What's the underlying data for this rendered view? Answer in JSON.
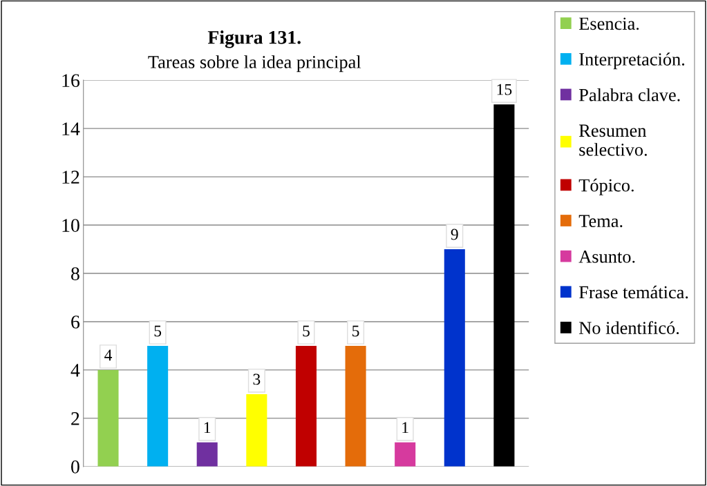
{
  "chart_data": {
    "type": "bar",
    "title": "Figura 131.",
    "subtitle": "Tareas sobre la idea principal",
    "categories": [
      null,
      null,
      null,
      null,
      null,
      null,
      null,
      null,
      null
    ],
    "series": [
      {
        "name": "Esencia.",
        "color": "#92d050",
        "values": [
          4,
          null,
          null,
          null,
          null,
          null,
          null,
          null,
          null
        ]
      },
      {
        "name": "Interpretación.",
        "color": "#00b0f0",
        "values": [
          null,
          5,
          null,
          null,
          null,
          null,
          null,
          null,
          null
        ]
      },
      {
        "name": "Palabra clave.",
        "color": "#7030a0",
        "values": [
          null,
          null,
          1,
          null,
          null,
          null,
          null,
          null,
          null
        ]
      },
      {
        "name": "Resumen selectivo.",
        "color": "#ffff00",
        "values": [
          null,
          null,
          null,
          3,
          null,
          null,
          null,
          null,
          null
        ]
      },
      {
        "name": "Tópico.",
        "color": "#c00000",
        "values": [
          null,
          null,
          null,
          null,
          5,
          null,
          null,
          null,
          null
        ]
      },
      {
        "name": "Tema.",
        "color": "#e46c0a",
        "values": [
          null,
          null,
          null,
          null,
          null,
          5,
          null,
          null,
          null
        ]
      },
      {
        "name": "Asunto.",
        "color": "#d63a9e",
        "values": [
          null,
          null,
          null,
          null,
          null,
          null,
          1,
          null,
          null
        ]
      },
      {
        "name": "Frase temática.",
        "color": "#0033cc",
        "values": [
          null,
          null,
          null,
          null,
          null,
          null,
          null,
          9,
          null
        ]
      },
      {
        "name": "No identificó.",
        "color": "#000000",
        "values": [
          null,
          null,
          null,
          null,
          null,
          null,
          null,
          null,
          15
        ]
      }
    ],
    "ylim": [
      0,
      16
    ],
    "yticks": [
      0,
      2,
      4,
      6,
      8,
      10,
      12,
      14,
      16
    ],
    "grid": "y",
    "legend": "right",
    "data_labels": true
  }
}
